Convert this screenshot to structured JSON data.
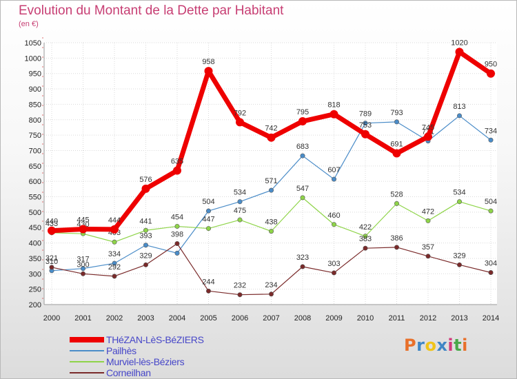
{
  "title": "Evolution du Montant de la Dette par Habitant",
  "subtitle": "(en €)",
  "logo": {
    "letters": [
      "P",
      "r",
      "o",
      "x",
      "i",
      "t",
      "i"
    ],
    "colors": [
      "#e8702a",
      "#3f86c5",
      "#f0c419",
      "#3f86c5",
      "#d23b7c",
      "#4aa84a",
      "#e8702a"
    ]
  },
  "chart_data": {
    "type": "line",
    "x": [
      "2000",
      "2001",
      "2002",
      "2003",
      "2004",
      "2005",
      "2006",
      "2007",
      "2008",
      "2009",
      "2010",
      "2011",
      "2012",
      "2013",
      "2014"
    ],
    "ylim": [
      200,
      1050
    ],
    "yticks": [
      200,
      250,
      300,
      350,
      400,
      450,
      500,
      550,
      600,
      650,
      700,
      750,
      800,
      850,
      900,
      950,
      1000,
      1050
    ],
    "grid": true,
    "legend_position": "bottom-left",
    "series": [
      {
        "name": "THéZAN-LèS-BéZIERS",
        "color": "#ee0000",
        "emphasis": true,
        "values": [
          440,
          445,
          444,
          576,
          635,
          958,
          792,
          742,
          795,
          818,
          753,
          691,
          745,
          1020,
          950
        ],
        "labels": [
          "440",
          "445",
          "444",
          "576",
          "635",
          "958",
          "792",
          "742",
          "795",
          "818",
          "753",
          "691",
          "745",
          "1020",
          "950"
        ]
      },
      {
        "name": "Pailhès",
        "color": "#4a8cc8",
        "values": [
          310,
          317,
          334,
          393,
          367,
          504,
          534,
          571,
          683,
          607,
          789,
          793,
          731,
          813,
          734
        ],
        "labels": [
          "310",
          "317",
          "334",
          "393",
          "",
          "504",
          "534",
          "571",
          "683",
          "607",
          "789",
          "793",
          "731",
          "813",
          "734"
        ]
      },
      {
        "name": "Murviel-lès-Béziers",
        "color": "#8ed448",
        "values": [
          433,
          430,
          403,
          441,
          454,
          447,
          475,
          438,
          547,
          460,
          422,
          528,
          472,
          534,
          504
        ],
        "labels": [
          "433",
          "430",
          "403",
          "441",
          "454",
          "447",
          "475",
          "438",
          "547",
          "460",
          "422",
          "528",
          "472",
          "534",
          "504"
        ]
      },
      {
        "name": "Corneilhan",
        "color": "#7a2a2a",
        "values": [
          321,
          300,
          292,
          329,
          398,
          244,
          232,
          234,
          323,
          303,
          383,
          386,
          357,
          329,
          304
        ],
        "labels": [
          "321",
          "300",
          "292",
          "329",
          "398",
          "244",
          "232",
          "234",
          "323",
          "303",
          "383",
          "386",
          "357",
          "329",
          "304"
        ]
      }
    ]
  }
}
